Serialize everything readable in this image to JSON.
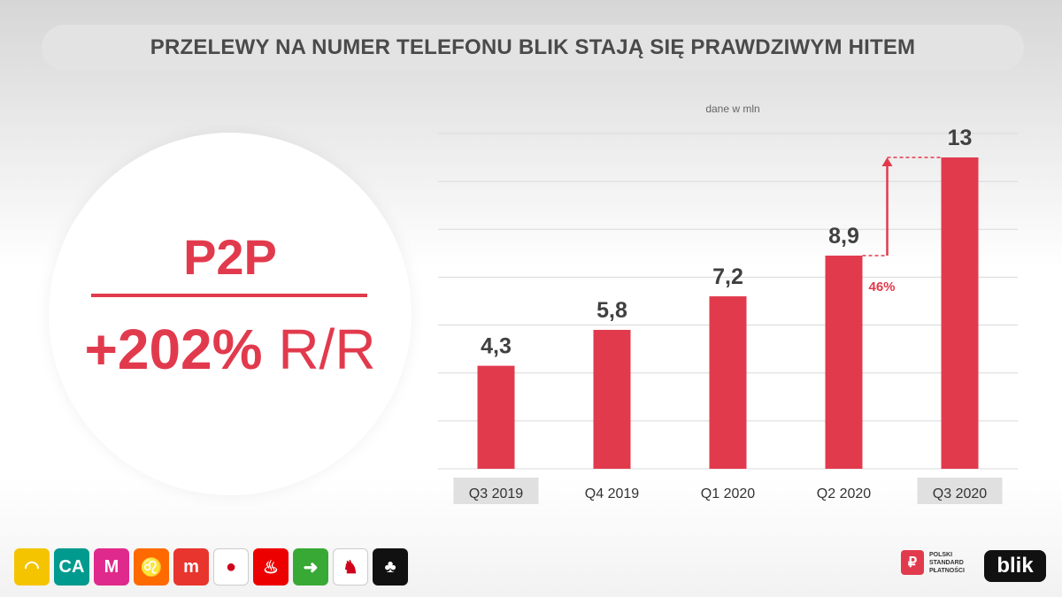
{
  "header": {
    "title": "PRZELEWY NA NUMER TELEFONU BLIK STAJĄ SIĘ PRAWDZIWYM HITEM"
  },
  "highlight": {
    "label": "P2P",
    "growth_value": "+202%",
    "growth_suffix": "R/R"
  },
  "chart_data": {
    "type": "bar",
    "unit_note": "dane w mln",
    "categories": [
      "Q3 2019",
      "Q4 2019",
      "Q1 2020",
      "Q2 2020",
      "Q3 2020"
    ],
    "values": [
      4.3,
      5.8,
      7.2,
      8.9,
      13
    ],
    "value_labels": [
      "4,3",
      "5,8",
      "7,2",
      "8,9",
      "13"
    ],
    "highlighted_categories": [
      "Q3 2019",
      "Q3 2020"
    ],
    "annotation": {
      "from": "Q2 2020",
      "to": "Q3 2020",
      "label": "46%"
    },
    "ylim": [
      0,
      13
    ],
    "grid": true,
    "colors": {
      "bar": "#e23a4d",
      "grid": "#d9d9d9",
      "label": "#404040",
      "highlight_bg": "#e0e0e0"
    }
  },
  "footer": {
    "bank_logos": [
      {
        "name": "sun-hat-logo",
        "bg": "#f5c400",
        "glyph": "◠"
      },
      {
        "name": "credit-agricole-logo",
        "bg": "#009a8e",
        "glyph": "CA"
      },
      {
        "name": "m-logo",
        "bg": "#e0298c",
        "glyph": "M"
      },
      {
        "name": "lion-logo",
        "bg": "#ff6a00",
        "glyph": "♌"
      },
      {
        "name": "mbank-logo",
        "bg": "#e8352e",
        "glyph": "m"
      },
      {
        "name": "circle-logo",
        "bg": "#ffffff",
        "glyph": "●"
      },
      {
        "name": "flame-logo",
        "bg": "#ec0000",
        "glyph": "♨"
      },
      {
        "name": "arrow-logo",
        "bg": "#39a935",
        "glyph": "➜"
      },
      {
        "name": "bison-logo",
        "bg": "#ffffff",
        "glyph": "♞"
      },
      {
        "name": "tree-logo",
        "bg": "#111111",
        "glyph": "♣"
      }
    ],
    "psp_text": [
      "POLSKI",
      "STANDARD",
      "PŁATNOŚCI"
    ],
    "blik_text": "blik"
  }
}
